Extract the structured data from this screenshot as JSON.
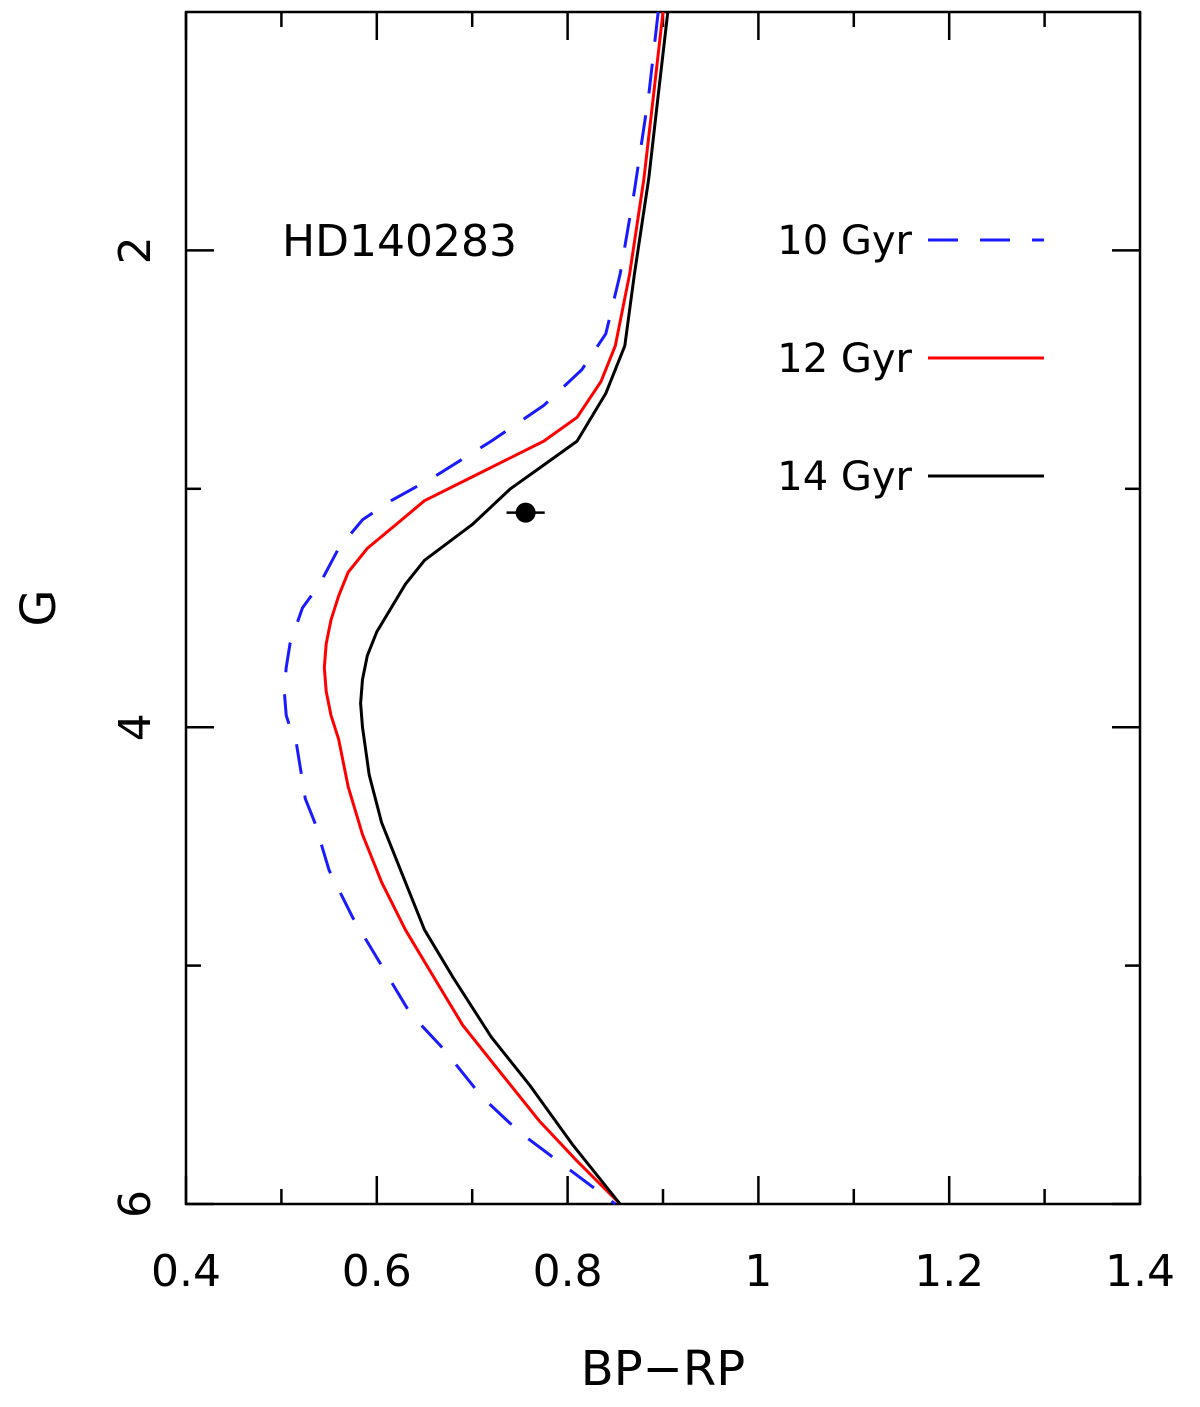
{
  "chart_data": {
    "type": "line",
    "title": "",
    "xlabel": "BP−RP",
    "ylabel": "G",
    "xlim": [
      0.4,
      1.4
    ],
    "ylim": [
      6,
      1
    ],
    "y_inverted": true,
    "x_ticks_major": [
      0.4,
      0.6,
      0.8,
      1,
      1.2,
      1.4
    ],
    "x_tick_labels": [
      "0.4",
      "0.6",
      "0.8",
      "1",
      "1.2",
      "1.4"
    ],
    "x_ticks_minor": [
      0.5,
      0.7,
      0.9,
      1.1,
      1.3
    ],
    "y_ticks_major": [
      2,
      4,
      6
    ],
    "y_tick_labels": [
      "2",
      "4",
      "6"
    ],
    "y_ticks_minor": [
      3,
      5
    ],
    "annotation": "HD140283",
    "legend_position": "top-right",
    "series": [
      {
        "name": "10 Gyr",
        "color": "#1a1aff",
        "dash": "dashed",
        "points": [
          [
            0.895,
            1.0
          ],
          [
            0.885,
            1.35
          ],
          [
            0.87,
            1.75
          ],
          [
            0.855,
            2.1
          ],
          [
            0.84,
            2.35
          ],
          [
            0.815,
            2.5
          ],
          [
            0.775,
            2.65
          ],
          [
            0.72,
            2.8
          ],
          [
            0.66,
            2.95
          ],
          [
            0.615,
            3.05
          ],
          [
            0.585,
            3.13
          ],
          [
            0.56,
            3.25
          ],
          [
            0.54,
            3.4
          ],
          [
            0.522,
            3.5
          ],
          [
            0.509,
            3.65
          ],
          [
            0.505,
            3.75
          ],
          [
            0.503,
            3.85
          ],
          [
            0.505,
            3.95
          ],
          [
            0.509,
            4.0
          ],
          [
            0.515,
            4.05
          ],
          [
            0.525,
            4.3
          ],
          [
            0.535,
            4.4
          ],
          [
            0.55,
            4.6
          ],
          [
            0.575,
            4.8
          ],
          [
            0.605,
            5.0
          ],
          [
            0.635,
            5.2
          ],
          [
            0.67,
            5.35
          ],
          [
            0.71,
            5.55
          ],
          [
            0.75,
            5.7
          ],
          [
            0.8,
            5.85
          ],
          [
            0.85,
            6.0
          ]
        ]
      },
      {
        "name": "12 Gyr",
        "color": "#ff0000",
        "dash": "solid",
        "points": [
          [
            0.9,
            1.0
          ],
          [
            0.89,
            1.35
          ],
          [
            0.88,
            1.7
          ],
          [
            0.865,
            2.1
          ],
          [
            0.85,
            2.4
          ],
          [
            0.835,
            2.55
          ],
          [
            0.81,
            2.7
          ],
          [
            0.775,
            2.8
          ],
          [
            0.735,
            2.88
          ],
          [
            0.7,
            2.95
          ],
          [
            0.65,
            3.05
          ],
          [
            0.62,
            3.15
          ],
          [
            0.59,
            3.25
          ],
          [
            0.57,
            3.35
          ],
          [
            0.56,
            3.45
          ],
          [
            0.552,
            3.55
          ],
          [
            0.547,
            3.65
          ],
          [
            0.545,
            3.75
          ],
          [
            0.547,
            3.85
          ],
          [
            0.552,
            3.95
          ],
          [
            0.56,
            4.05
          ],
          [
            0.57,
            4.25
          ],
          [
            0.585,
            4.45
          ],
          [
            0.605,
            4.65
          ],
          [
            0.63,
            4.85
          ],
          [
            0.66,
            5.05
          ],
          [
            0.69,
            5.25
          ],
          [
            0.73,
            5.45
          ],
          [
            0.77,
            5.65
          ],
          [
            0.81,
            5.82
          ],
          [
            0.855,
            6.0
          ]
        ]
      },
      {
        "name": "14 Gyr",
        "color": "#000000",
        "dash": "solid",
        "points": [
          [
            0.905,
            1.0
          ],
          [
            0.895,
            1.35
          ],
          [
            0.885,
            1.7
          ],
          [
            0.87,
            2.1
          ],
          [
            0.86,
            2.4
          ],
          [
            0.84,
            2.6
          ],
          [
            0.81,
            2.8
          ],
          [
            0.775,
            2.9
          ],
          [
            0.74,
            3.0
          ],
          [
            0.7,
            3.15
          ],
          [
            0.65,
            3.3
          ],
          [
            0.63,
            3.4
          ],
          [
            0.615,
            3.5
          ],
          [
            0.6,
            3.6
          ],
          [
            0.59,
            3.7
          ],
          [
            0.585,
            3.8
          ],
          [
            0.583,
            3.9
          ],
          [
            0.585,
            4.0
          ],
          [
            0.592,
            4.2
          ],
          [
            0.605,
            4.4
          ],
          [
            0.625,
            4.6
          ],
          [
            0.65,
            4.85
          ],
          [
            0.68,
            5.05
          ],
          [
            0.72,
            5.3
          ],
          [
            0.76,
            5.5
          ],
          [
            0.805,
            5.75
          ],
          [
            0.855,
            6.0
          ]
        ]
      }
    ],
    "data_point": {
      "label": "HD140283",
      "x": 0.756,
      "y": 3.1,
      "x_err": 0.02,
      "y_err": 0.04
    }
  }
}
